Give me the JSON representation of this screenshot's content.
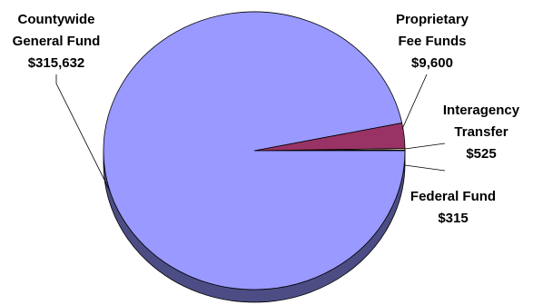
{
  "chart_data": {
    "type": "pie",
    "style": "3d",
    "slices": [
      {
        "name": "Countywide General Fund",
        "line1": "Countywide",
        "line2": "General Fund",
        "value_label": "$315,632",
        "value": 315632,
        "color": "#9999FF",
        "side_color": "#4D4D85"
      },
      {
        "name": "Proprietary Fee Funds",
        "line1": "Proprietary",
        "line2": "Fee Funds",
        "value_label": "$9,600",
        "value": 9600,
        "color": "#993366",
        "side_color": "#5C1F3D"
      },
      {
        "name": "Interagency Transfer",
        "line1": "Interagency",
        "line2": "Transfer",
        "value_label": "$525",
        "value": 525,
        "color": "#FFFFCC",
        "side_color": "#99997A"
      },
      {
        "name": "Federal Fund",
        "line1": "Federal Fund",
        "line2": "",
        "value_label": "$315",
        "value": 315,
        "color": "#CCFFFF",
        "side_color": "#7A9999"
      }
    ],
    "legend": "none"
  }
}
